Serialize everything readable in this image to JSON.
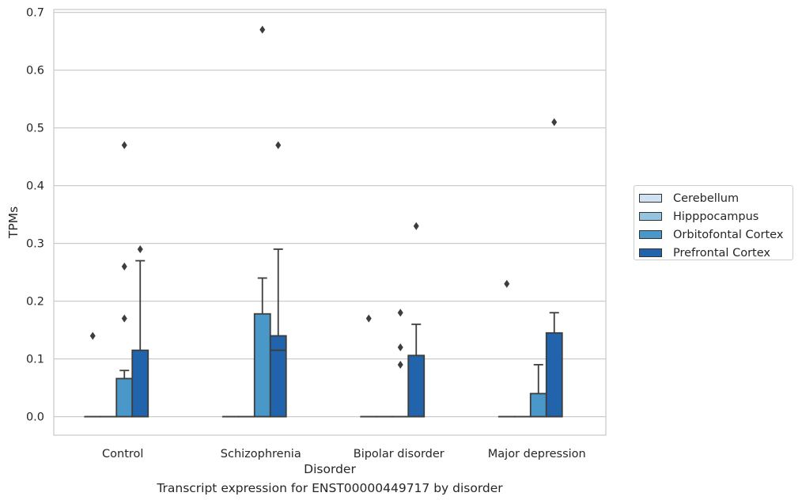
{
  "chart_data": {
    "type": "box",
    "caption": "Transcript expression for ENST00000449717 by disorder",
    "xlabel": "Disorder",
    "ylabel": "TPMs",
    "ylim": [
      -0.032,
      0.705
    ],
    "yticks": [
      "0.0",
      "0.1",
      "0.2",
      "0.3",
      "0.4",
      "0.5",
      "0.6",
      "0.7"
    ],
    "grid": true,
    "legend_position": "right",
    "categories": [
      "Control",
      "Schizophrenia",
      "Bipolar disorder",
      "Major depression"
    ],
    "series": [
      {
        "name": "Cerebellum",
        "color": "#d0e1f2",
        "boxes": [
          {
            "q1": 0,
            "median": 0,
            "q3": 0,
            "whisker_low": 0,
            "whisker_high": 0,
            "outliers": [
              0.14
            ]
          },
          {
            "q1": 0,
            "median": 0,
            "q3": 0,
            "whisker_low": 0,
            "whisker_high": 0,
            "outliers": []
          },
          {
            "q1": 0,
            "median": 0,
            "q3": 0,
            "whisker_low": 0,
            "whisker_high": 0,
            "outliers": [
              0.17
            ]
          },
          {
            "q1": 0,
            "median": 0,
            "q3": 0,
            "whisker_low": 0,
            "whisker_high": 0,
            "outliers": [
              0.23
            ]
          }
        ]
      },
      {
        "name": "Hipppocampus",
        "color": "#94c4df",
        "boxes": [
          {
            "q1": 0,
            "median": 0,
            "q3": 0,
            "whisker_low": 0,
            "whisker_high": 0,
            "outliers": []
          },
          {
            "q1": 0,
            "median": 0,
            "q3": 0,
            "whisker_low": 0,
            "whisker_high": 0,
            "outliers": []
          },
          {
            "q1": 0,
            "median": 0,
            "q3": 0,
            "whisker_low": 0,
            "whisker_high": 0,
            "outliers": []
          },
          {
            "q1": 0,
            "median": 0,
            "q3": 0,
            "whisker_low": 0,
            "whisker_high": 0,
            "outliers": []
          }
        ]
      },
      {
        "name": "Orbitofontal Cortex",
        "color": "#4a98c9",
        "boxes": [
          {
            "q1": 0,
            "median": 0,
            "q3": 0.066,
            "whisker_low": 0,
            "whisker_high": 0.08,
            "outliers": [
              0.17,
              0.26,
              0.47
            ]
          },
          {
            "q1": 0,
            "median": 0,
            "q3": 0.178,
            "whisker_low": 0,
            "whisker_high": 0.24,
            "outliers": [
              0.67
            ]
          },
          {
            "q1": 0,
            "median": 0,
            "q3": 0,
            "whisker_low": 0,
            "whisker_high": 0,
            "outliers": [
              0.12,
              0.09,
              0.18
            ]
          },
          {
            "q1": 0,
            "median": 0,
            "q3": 0.04,
            "whisker_low": 0,
            "whisker_high": 0.09,
            "outliers": []
          }
        ]
      },
      {
        "name": "Prefrontal Cortex",
        "color": "#2164ab",
        "boxes": [
          {
            "q1": 0,
            "median": 0,
            "q3": 0.115,
            "whisker_low": 0,
            "whisker_high": 0.27,
            "outliers": [
              0.29
            ]
          },
          {
            "q1": 0,
            "median": 0.115,
            "q3": 0.14,
            "whisker_low": 0,
            "whisker_high": 0.29,
            "outliers": [
              0.47
            ]
          },
          {
            "q1": 0,
            "median": 0,
            "q3": 0.106,
            "whisker_low": 0,
            "whisker_high": 0.16,
            "outliers": [
              0.33
            ]
          },
          {
            "q1": 0,
            "median": 0,
            "q3": 0.145,
            "whisker_low": 0,
            "whisker_high": 0.18,
            "outliers": [
              0.51
            ]
          }
        ]
      }
    ]
  }
}
